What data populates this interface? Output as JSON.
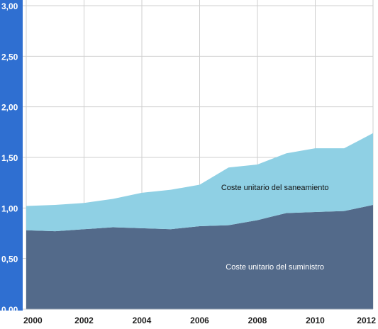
{
  "chart_data": {
    "type": "area",
    "stacked": true,
    "title": "",
    "xlabel": "",
    "ylabel": "",
    "x": [
      2000,
      2001,
      2002,
      2003,
      2004,
      2005,
      2006,
      2007,
      2008,
      2009,
      2010,
      2011,
      2012
    ],
    "x_tick_labels": [
      "2000",
      "2002",
      "2004",
      "2006",
      "2008",
      "2010",
      "2012"
    ],
    "y_tick_labels": [
      "0,00",
      "0,50",
      "1,00",
      "1,50",
      "2,00",
      "2,50",
      "3,00"
    ],
    "ylim": [
      0,
      3
    ],
    "grid": true,
    "series": [
      {
        "name": "Coste unitario del suministro",
        "color": "#536a8a",
        "label_color": "#ffffff",
        "values": [
          0.78,
          0.77,
          0.79,
          0.81,
          0.8,
          0.79,
          0.82,
          0.83,
          0.88,
          0.95,
          0.96,
          0.97,
          1.03
        ]
      },
      {
        "name": "Coste unitario del saneamiento",
        "color": "#8fd0e4",
        "label_color": "#111111",
        "values": [
          0.24,
          0.26,
          0.26,
          0.28,
          0.35,
          0.39,
          0.41,
          0.57,
          0.55,
          0.59,
          0.63,
          0.62,
          0.71
        ]
      }
    ],
    "axis_band_color": "#2f6fd1",
    "grid_color": "#cfcfcf"
  }
}
